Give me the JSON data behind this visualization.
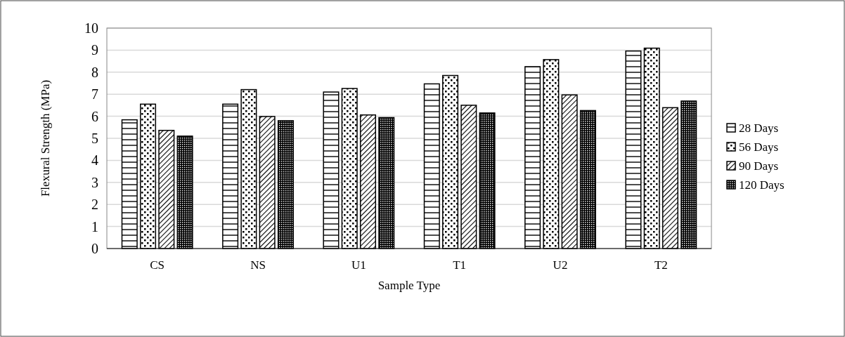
{
  "chart_data": {
    "type": "bar",
    "xlabel": "Sample Type",
    "ylabel": "Flexural Strength (MPa)",
    "categories": [
      "CS",
      "NS",
      "U1",
      "T1",
      "U2",
      "T2"
    ],
    "series": [
      {
        "name": "28 Days",
        "color": "#000000",
        "values": [
          5.84,
          6.55,
          7.1,
          7.47,
          8.25,
          8.96
        ]
      },
      {
        "name": "56 Days",
        "color": "#000000",
        "values": [
          6.55,
          7.21,
          7.26,
          7.85,
          8.57,
          9.09
        ]
      },
      {
        "name": "90 Days",
        "color": "#000000",
        "values": [
          5.36,
          5.99,
          6.06,
          6.5,
          6.97,
          6.39
        ]
      },
      {
        "name": "120 Days",
        "color": "#000000",
        "values": [
          5.1,
          5.8,
          5.94,
          6.15,
          6.26,
          6.69
        ]
      }
    ],
    "ylim": [
      0,
      10
    ],
    "yticks": [
      0,
      1,
      2,
      3,
      4,
      5,
      6,
      7,
      8,
      9,
      10
    ],
    "grid": "y",
    "legend": "right"
  }
}
